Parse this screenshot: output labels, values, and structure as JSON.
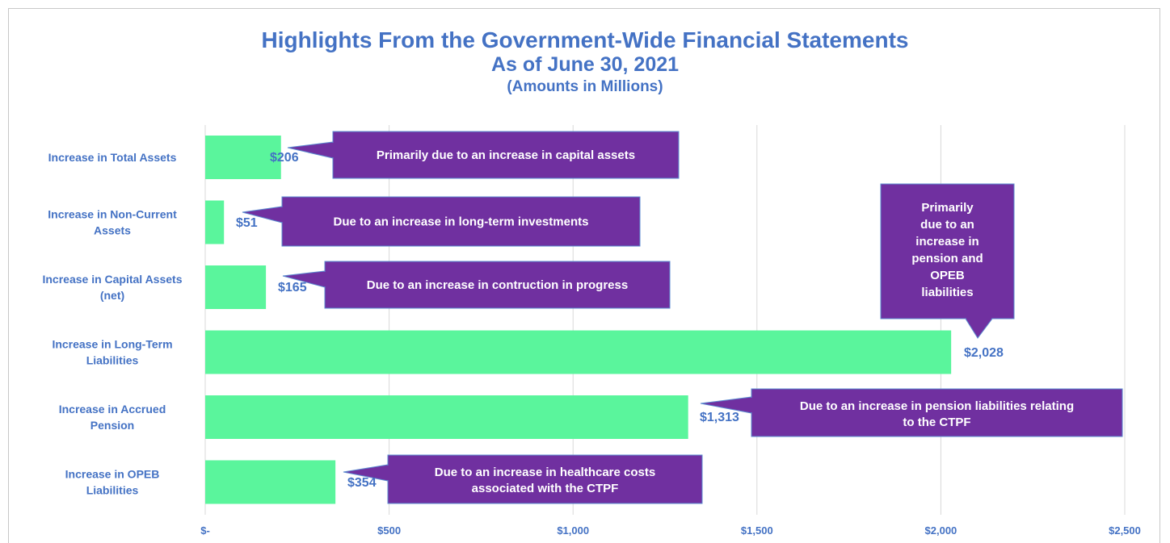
{
  "chart_data": {
    "type": "bar",
    "orientation": "horizontal",
    "title": "Highlights From the Government-Wide Financial Statements",
    "subtitle": "As of June 30, 2021",
    "note": "(Amounts in Millions)",
    "categories": [
      [
        "Increase in Total Assets"
      ],
      [
        "Increase in Non-Current",
        "Assets"
      ],
      [
        "Increase in Capital Assets",
        "(net)"
      ],
      [
        "Increase in Long-Term",
        "Liabilities"
      ],
      [
        "Increase in Accrued",
        "Pension"
      ],
      [
        "Increase in OPEB",
        "Liabilities"
      ]
    ],
    "values": [
      206,
      51,
      165,
      2028,
      1313,
      354
    ],
    "data_labels": [
      "$206",
      "$51",
      "$165",
      "$2,028",
      "$1,313",
      "$354"
    ],
    "xlim": [
      0,
      2500
    ],
    "x_ticks": [
      0,
      500,
      1000,
      1500,
      2000,
      2500
    ],
    "x_tick_labels": [
      "$-",
      "$500",
      "$1,000",
      "$1,500",
      "$2,000",
      "$2,500"
    ],
    "grid": true,
    "bar_color": "#5af59c",
    "annotations": [
      [
        "Primarily due to an increase in capital assets"
      ],
      [
        "Due to an increase in long-term investments"
      ],
      [
        "Due to an increase in contruction in progress"
      ],
      [
        "Primarily",
        "due to an",
        "increase in",
        "pension and",
        "OPEB",
        "liabilities"
      ],
      [
        "Due to an increase in pension liabilities relating",
        "to the CTPF"
      ],
      [
        "Due to an increase in healthcare costs",
        "associated with the CTPF"
      ]
    ],
    "annotation_color": "#7030a0"
  }
}
